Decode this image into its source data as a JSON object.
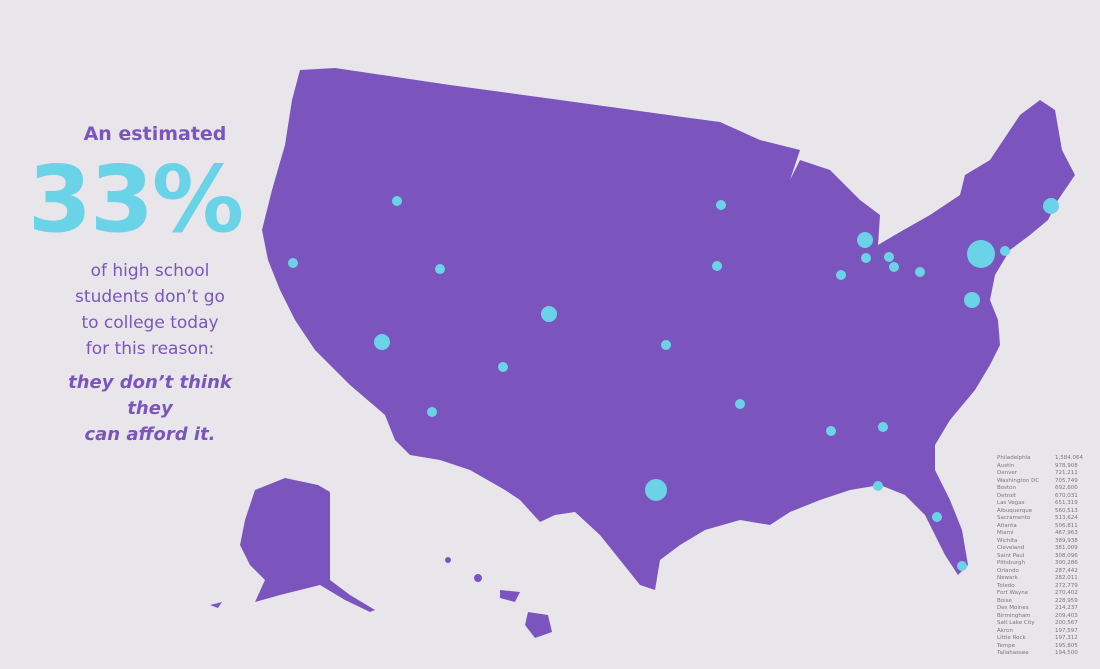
{
  "headline": {
    "lead": "An estimated",
    "percent": "33%",
    "body": [
      "of high school",
      "students don’t go",
      "to college today",
      "for this reason:"
    ],
    "emphasis": [
      "they don’t think they",
      "can afford it."
    ]
  },
  "colors": {
    "map": "#7b55bd",
    "dots": "#6bd3e8",
    "background": "#e8e6ea",
    "text": "#7b55bd"
  },
  "cities": [
    {
      "name": "Philadelphia",
      "value": "1,584,064"
    },
    {
      "name": "Austin",
      "value": "978,908"
    },
    {
      "name": "Denver",
      "value": "721,211"
    },
    {
      "name": "Washington DC",
      "value": "705,749"
    },
    {
      "name": "Boston",
      "value": "692,600"
    },
    {
      "name": "Detroit",
      "value": "670,031"
    },
    {
      "name": "Las Vegas",
      "value": "651,319"
    },
    {
      "name": "Albuquerque",
      "value": "560,513"
    },
    {
      "name": "Sacramento",
      "value": "513,624"
    },
    {
      "name": "Atlanta",
      "value": "506,811"
    },
    {
      "name": "Miami",
      "value": "467,963"
    },
    {
      "name": "Wichita",
      "value": "389,938"
    },
    {
      "name": "Cleveland",
      "value": "381,009"
    },
    {
      "name": "Saint Paul",
      "value": "308,096"
    },
    {
      "name": "Pittsburgh",
      "value": "300,286"
    },
    {
      "name": "Orlando",
      "value": "287,442"
    },
    {
      "name": "Newark",
      "value": "282,011"
    },
    {
      "name": "Toledo",
      "value": "272,779"
    },
    {
      "name": "Fort Wayne",
      "value": "270,402"
    },
    {
      "name": "Boise",
      "value": "228,959"
    },
    {
      "name": "Des Moines",
      "value": "214,237"
    },
    {
      "name": "Birmingham",
      "value": "209,403"
    },
    {
      "name": "Salt Lake City",
      "value": "200,567"
    },
    {
      "name": "Akron",
      "value": "197,597"
    },
    {
      "name": "Little Rock",
      "value": "197,312"
    },
    {
      "name": "Tempe",
      "value": "195,805"
    },
    {
      "name": "Tallahassee",
      "value": "194,500"
    }
  ]
}
